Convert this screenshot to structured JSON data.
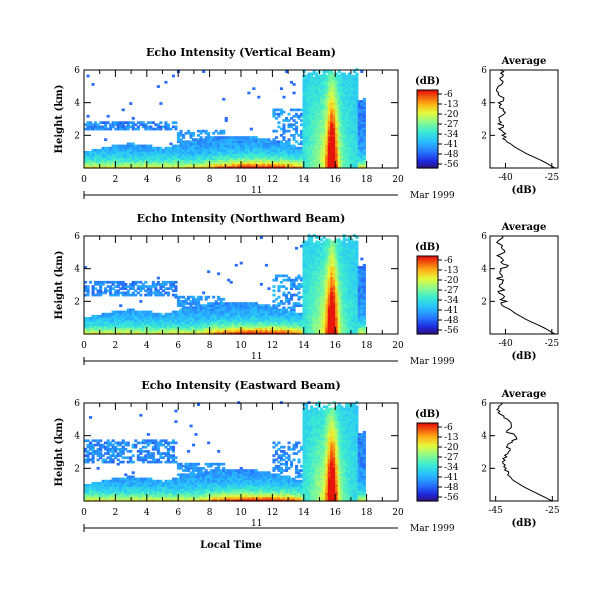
{
  "figure": {
    "xlabel": "Local Time",
    "date_label": "Mar 1999",
    "day_label": "11",
    "cbar_label": "(dB)",
    "avg_title": "Average",
    "avg_xlabel": "(dB)",
    "ylabel": "Height (km)"
  },
  "chart_data": [
    {
      "type": "heatmap",
      "title": "Echo Intensity (Vertical Beam)",
      "ylabel": "Height (km)",
      "xlim": [
        0,
        20
      ],
      "xticks": [
        "0",
        "2",
        "4",
        "6",
        "8",
        "10",
        "12",
        "14",
        "16",
        "18",
        "20"
      ],
      "ylim": [
        0,
        6
      ],
      "yticks": [
        "2",
        "4",
        "6"
      ],
      "colorbar": {
        "label": "(dB)",
        "ticks": [
          "-6",
          "-13",
          "-20",
          "-27",
          "-34",
          "-41",
          "-48",
          "-56"
        ]
      }
    },
    {
      "type": "heatmap",
      "title": "Echo Intensity (Northward Beam)",
      "ylabel": "Height (km)",
      "xlim": [
        0,
        20
      ],
      "xticks": [
        "0",
        "2",
        "4",
        "6",
        "8",
        "10",
        "12",
        "14",
        "16",
        "18",
        "20"
      ],
      "ylim": [
        0,
        6
      ],
      "yticks": [
        "2",
        "4",
        "6"
      ],
      "colorbar": {
        "label": "(dB)",
        "ticks": [
          "-6",
          "-13",
          "-20",
          "-27",
          "-34",
          "-41",
          "-48",
          "-56"
        ]
      }
    },
    {
      "type": "heatmap",
      "title": "Echo Intensity (Eastward Beam)",
      "ylabel": "Height (km)",
      "xlim": [
        0,
        20
      ],
      "xticks": [
        "0",
        "2",
        "4",
        "6",
        "8",
        "10",
        "12",
        "14",
        "16",
        "18",
        "20"
      ],
      "ylim": [
        0,
        6
      ],
      "yticks": [
        "2",
        "4",
        "6"
      ],
      "colorbar": {
        "label": "(dB)",
        "ticks": [
          "-6",
          "-13",
          "-20",
          "-27",
          "-34",
          "-41",
          "-48",
          "-56"
        ]
      }
    },
    {
      "type": "line",
      "title": "Average",
      "xlabel": "(dB)",
      "xticks": [
        "-40",
        "-25"
      ],
      "xlim": [
        -45,
        -23
      ],
      "ylim": [
        0,
        6
      ],
      "yticks": [
        "2",
        "4",
        "6"
      ],
      "profile_db": [
        -24,
        -28,
        -33,
        -37,
        -40,
        -41,
        -41.5,
        -42,
        -41,
        -42,
        -41,
        -43,
        -41,
        -42,
        -41
      ]
    },
    {
      "type": "line",
      "title": "Average",
      "xlabel": "(dB)",
      "xticks": [
        "-40",
        "-25"
      ],
      "xlim": [
        -45,
        -23
      ],
      "ylim": [
        0,
        6
      ],
      "yticks": [
        "2",
        "4",
        "6"
      ],
      "profile_db": [
        -24,
        -28,
        -33,
        -37,
        -40,
        -41,
        -41.5,
        -41,
        -42,
        -41,
        -40,
        -42,
        -41,
        -42,
        -41
      ]
    },
    {
      "type": "line",
      "title": "Average",
      "xlabel": "(dB)",
      "xticks": [
        "-45",
        "-25"
      ],
      "xlim": [
        -47,
        -23
      ],
      "ylim": [
        0,
        6
      ],
      "yticks": [
        "2",
        "4",
        "6"
      ],
      "profile_db": [
        -25,
        -30,
        -35,
        -39,
        -41,
        -42,
        -42,
        -41,
        -40,
        -38,
        -41,
        -40,
        -42,
        -44,
        -43
      ]
    }
  ]
}
